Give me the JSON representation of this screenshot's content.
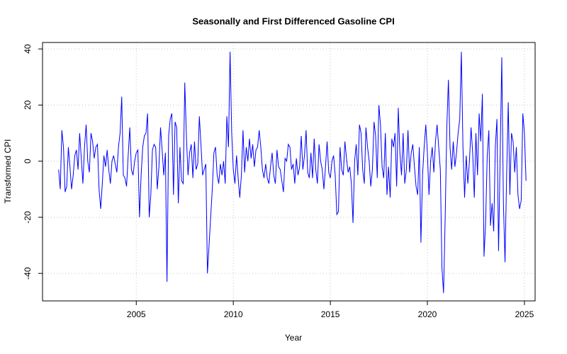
{
  "chart_data": {
    "type": "line",
    "title": "Seasonally and First Differenced Gasoline CPI",
    "x_label": "Year",
    "y_label": "Transformed CPI",
    "xlim": [
      2000.17,
      2025.55
    ],
    "ylim": [
      -49.8,
      42.3
    ],
    "xticks": [
      2005,
      2010,
      2015,
      2020,
      2025
    ],
    "yticks": [
      -40,
      -20,
      0,
      20,
      40
    ],
    "grid": true,
    "series": [
      {
        "color": "#0000ff",
        "x": [
          2001.0,
          2001.083,
          2001.167,
          2001.25,
          2001.333,
          2001.417,
          2001.5,
          2001.583,
          2001.667,
          2001.75,
          2001.833,
          2001.917,
          2002.0,
          2002.083,
          2002.167,
          2002.25,
          2002.333,
          2002.417,
          2002.5,
          2002.583,
          2002.667,
          2002.75,
          2002.833,
          2002.917,
          2003.0,
          2003.083,
          2003.167,
          2003.25,
          2003.333,
          2003.417,
          2003.5,
          2003.583,
          2003.667,
          2003.75,
          2003.833,
          2003.917,
          2004.0,
          2004.083,
          2004.167,
          2004.25,
          2004.333,
          2004.417,
          2004.5,
          2004.583,
          2004.667,
          2004.75,
          2004.833,
          2004.917,
          2005.0,
          2005.083,
          2005.167,
          2005.25,
          2005.333,
          2005.417,
          2005.5,
          2005.583,
          2005.667,
          2005.75,
          2005.833,
          2005.917,
          2006.0,
          2006.083,
          2006.167,
          2006.25,
          2006.333,
          2006.417,
          2006.5,
          2006.583,
          2006.667,
          2006.75,
          2006.833,
          2006.917,
          2007.0,
          2007.083,
          2007.167,
          2007.25,
          2007.333,
          2007.417,
          2007.5,
          2007.583,
          2007.667,
          2007.75,
          2007.833,
          2007.917,
          2008.0,
          2008.083,
          2008.167,
          2008.25,
          2008.333,
          2008.417,
          2008.5,
          2008.583,
          2008.667,
          2008.75,
          2008.833,
          2008.917,
          2009.0,
          2009.083,
          2009.167,
          2009.25,
          2009.333,
          2009.417,
          2009.5,
          2009.583,
          2009.667,
          2009.75,
          2009.833,
          2009.917,
          2010.0,
          2010.083,
          2010.167,
          2010.25,
          2010.333,
          2010.417,
          2010.5,
          2010.583,
          2010.667,
          2010.75,
          2010.833,
          2010.917,
          2011.0,
          2011.083,
          2011.167,
          2011.25,
          2011.333,
          2011.417,
          2011.5,
          2011.583,
          2011.667,
          2011.75,
          2011.833,
          2011.917,
          2012.0,
          2012.083,
          2012.167,
          2012.25,
          2012.333,
          2012.417,
          2012.5,
          2012.583,
          2012.667,
          2012.75,
          2012.833,
          2012.917,
          2013.0,
          2013.083,
          2013.167,
          2013.25,
          2013.333,
          2013.417,
          2013.5,
          2013.583,
          2013.667,
          2013.75,
          2013.833,
          2013.917,
          2014.0,
          2014.083,
          2014.167,
          2014.25,
          2014.333,
          2014.417,
          2014.5,
          2014.583,
          2014.667,
          2014.75,
          2014.833,
          2014.917,
          2015.0,
          2015.083,
          2015.167,
          2015.25,
          2015.333,
          2015.417,
          2015.5,
          2015.583,
          2015.667,
          2015.75,
          2015.833,
          2015.917,
          2016.0,
          2016.083,
          2016.167,
          2016.25,
          2016.333,
          2016.417,
          2016.5,
          2016.583,
          2016.667,
          2016.75,
          2016.833,
          2016.917,
          2017.0,
          2017.083,
          2017.167,
          2017.25,
          2017.333,
          2017.417,
          2017.5,
          2017.583,
          2017.667,
          2017.75,
          2017.833,
          2017.917,
          2018.0,
          2018.083,
          2018.167,
          2018.25,
          2018.333,
          2018.417,
          2018.5,
          2018.583,
          2018.667,
          2018.75,
          2018.833,
          2018.917,
          2019.0,
          2019.083,
          2019.167,
          2019.25,
          2019.333,
          2019.417,
          2019.5,
          2019.583,
          2019.667,
          2019.75,
          2019.833,
          2019.917,
          2020.0,
          2020.083,
          2020.167,
          2020.25,
          2020.333,
          2020.417,
          2020.5,
          2020.583,
          2020.667,
          2020.75,
          2020.833,
          2020.917,
          2021.0,
          2021.083,
          2021.167,
          2021.25,
          2021.333,
          2021.417,
          2021.5,
          2021.583,
          2021.667,
          2021.75,
          2021.833,
          2021.917,
          2022.0,
          2022.083,
          2022.167,
          2022.25,
          2022.333,
          2022.417,
          2022.5,
          2022.583,
          2022.667,
          2022.75,
          2022.833,
          2022.917,
          2023.0,
          2023.083,
          2023.167,
          2023.25,
          2023.333,
          2023.417,
          2023.5,
          2023.583,
          2023.667,
          2023.75,
          2023.833,
          2023.917,
          2024.0,
          2024.083,
          2024.167,
          2024.25,
          2024.333,
          2024.417,
          2024.5,
          2024.583,
          2024.667,
          2024.75,
          2024.833,
          2024.917,
          2025.0,
          2025.083
        ],
        "values": [
          -3,
          -10,
          11,
          5,
          -11,
          -9,
          5,
          -2,
          -10,
          -5,
          2,
          4,
          -3,
          10,
          1,
          -8,
          5,
          13,
          0,
          -4,
          10,
          7,
          1,
          5,
          6,
          -10,
          -17,
          -8,
          2,
          -2,
          4,
          -3,
          -8,
          0,
          2,
          -1,
          -4,
          5,
          10,
          23,
          -5,
          -6,
          -9,
          2,
          12,
          -3,
          -5,
          0,
          3,
          4,
          -20,
          -5,
          5,
          9,
          10,
          17,
          -20,
          -12,
          4,
          6,
          5,
          -10,
          -2,
          12,
          4,
          -5,
          3,
          -43,
          9,
          15,
          17,
          -12,
          14,
          12,
          -15,
          5,
          -7,
          -8,
          28,
          9,
          -5,
          3,
          6,
          -6,
          7,
          -3,
          -1,
          16,
          6,
          -5,
          -3,
          -1,
          -40,
          -30,
          -20,
          -10,
          3,
          5,
          -5,
          -8,
          -1,
          -5,
          0,
          -8,
          16,
          5,
          39,
          10,
          -3,
          -8,
          2,
          -6,
          -13,
          -5,
          11,
          -4,
          5,
          0,
          8,
          1,
          6,
          -2,
          4,
          5,
          11,
          5,
          -3,
          -6,
          -1,
          -6,
          -8,
          -2,
          3,
          -5,
          -8,
          4,
          -2,
          -3,
          -7,
          -11,
          1,
          0,
          6,
          5,
          -3,
          -1,
          -8,
          1,
          -5,
          -2,
          9,
          -3,
          2,
          11,
          -4,
          -6,
          3,
          -6,
          8,
          -3,
          -8,
          6,
          0,
          -3,
          -10,
          -2,
          7,
          -4,
          -6,
          0,
          2,
          -5,
          -19,
          -18,
          5,
          -3,
          -5,
          7,
          1,
          -4,
          -2,
          -8,
          -22,
          0,
          6,
          -5,
          13,
          10,
          -3,
          -8,
          12,
          5,
          0,
          -9,
          -3,
          14,
          9,
          -6,
          20,
          13,
          -2,
          -6,
          10,
          -12,
          -2,
          -13,
          8,
          5,
          10,
          -9,
          19,
          3,
          -5,
          10,
          -8,
          -3,
          11,
          -4,
          3,
          6,
          -2,
          -9,
          -12,
          5,
          -29,
          -5,
          5,
          13,
          3,
          -12,
          0,
          5,
          -4,
          7,
          13,
          5,
          -3,
          -38,
          -47,
          -20,
          12,
          29,
          5,
          -3,
          7,
          -2,
          3,
          10,
          15,
          39,
          5,
          -13,
          2,
          -8,
          0,
          12,
          3,
          -13,
          10,
          -5,
          17,
          7,
          24,
          -34,
          -22,
          2,
          11,
          -23,
          -15,
          -25,
          5,
          15,
          -32,
          2,
          37,
          -15,
          -36,
          -5,
          21,
          -12,
          10,
          7,
          -4,
          5,
          -12,
          -17,
          -14,
          17,
          10,
          -7
        ]
      }
    ]
  }
}
